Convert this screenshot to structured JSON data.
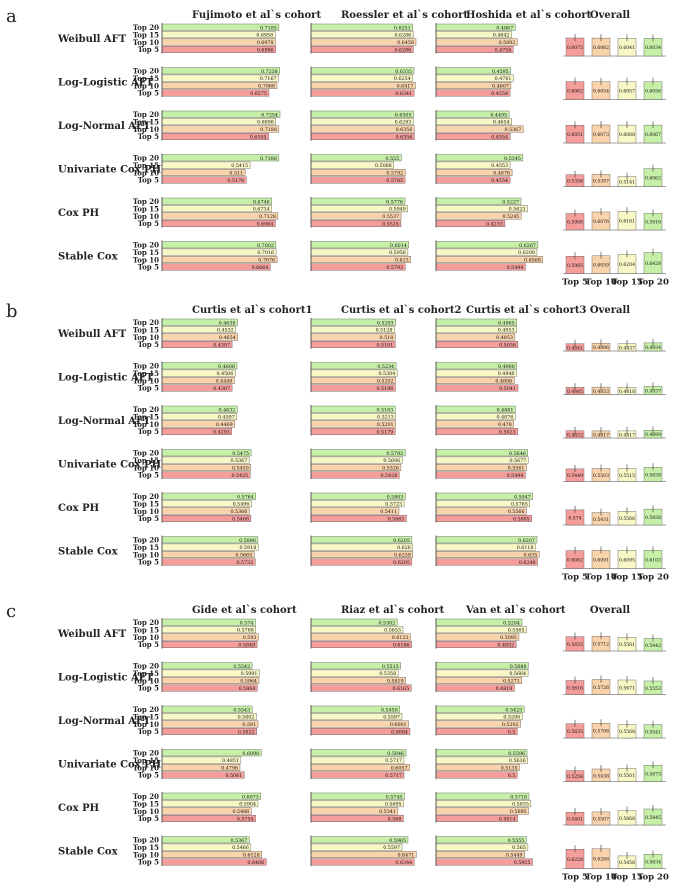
{
  "series_labels": [
    "Top 20",
    "Top 15",
    "Top 10",
    "Top 5"
  ],
  "series_colors": [
    "#c6f0a8",
    "#f8f7c6",
    "#f9d3ab",
    "#f49d9b"
  ],
  "overall_title": "Overall",
  "overall_xlabels": [
    "Top 5",
    "Top 10",
    "Top 15",
    "Top 20"
  ],
  "overall_colors": [
    "#f49d9b",
    "#f9d3ab",
    "#f8f7c6",
    "#c6f0a8"
  ],
  "chart_data": [
    {
      "type": "bar",
      "panel": "a",
      "cohorts": [
        "Fujimoto et al`s cohort",
        "Roessler et al`s cohort",
        "Hoshida et al`s cohort"
      ],
      "methods": [
        {
          "name": "Weibull AFT",
          "values": [
            [
              0.7185,
              0.6958,
              0.6978,
              0.6986
            ],
            [
              0.6251,
              0.6286,
              0.6456,
              0.6286
            ],
            [
              0.4867,
              0.4642,
              0.5002,
              0.4754
            ]
          ],
          "overall": [
            0.6075,
            0.6062,
            0.6041,
            0.6034
          ]
        },
        {
          "name": "Log-Logistic AFT",
          "values": [
            [
              0.7238,
              0.7167,
              0.7068,
              0.6575
            ],
            [
              0.6335,
              0.6254,
              0.6417,
              0.6341
            ],
            [
              0.4595,
              0.4761,
              0.4607,
              0.4554
            ]
          ],
          "overall": [
            0.6062,
            0.6054,
            0.6057,
            0.6056
          ]
        },
        {
          "name": "Log-Normal AFT",
          "values": [
            [
              0.7254,
              0.6998,
              0.7188,
              0.6555
            ],
            [
              0.6305,
              0.6293,
              0.6356,
              0.6356
            ],
            [
              0.4495,
              0.4654,
              0.5367,
              0.4554
            ]
          ],
          "overall": [
            0.6051,
            0.6073,
            0.6068,
            0.6067
          ]
        },
        {
          "name": "Univariate Cox PH",
          "values": [
            [
              0.7188,
              0.5415,
              0.511,
              0.5176
            ],
            [
              0.555,
              0.5088,
              0.5792,
              0.5785
            ],
            [
              0.5345,
              0.4553,
              0.4676,
              0.4554
            ]
          ],
          "overall": [
            0.5358,
            0.5397,
            0.5141,
            0.6062
          ]
        },
        {
          "name": "Cox PH",
          "values": [
            [
              0.6746,
              0.6734,
              0.7128,
              0.6964
            ],
            [
              0.5776,
              0.5949,
              0.5537,
              0.5525
            ],
            [
              0.5227,
              0.5623,
              0.5245,
              0.4233
            ]
          ],
          "overall": [
            0.5908,
            0.6076,
            0.6161,
            0.5916
          ]
        },
        {
          "name": "Stable Cox",
          "values": [
            [
              0.7002,
              0.7016,
              0.7076,
              0.6664
            ],
            [
              0.6014,
              0.5956,
              0.613,
              0.5792
            ],
            [
              0.6267,
              0.6208,
              0.6568,
              0.5494
            ]
          ],
          "overall": [
            0.5985,
            0.6059,
            0.6204,
            0.6428
          ]
        }
      ]
    },
    {
      "type": "bar",
      "panel": "b",
      "cohorts": [
        "Curtis et al`s cohort1",
        "Curtis et al`s cohort2",
        "Curtis et al`s cohort3"
      ],
      "methods": [
        {
          "name": "Weibull AFT",
          "values": [
            [
              0.4639,
              0.4532,
              0.4654,
              0.4307
            ],
            [
              0.5203,
              0.5128,
              0.518,
              0.5181
            ],
            [
              0.4965,
              0.4953,
              0.4853,
              0.5036
            ]
          ],
          "overall": [
            0.4841,
            0.4896,
            0.4837,
            0.4934
          ]
        },
        {
          "name": "Log-Logistic AFT",
          "values": [
            [
              0.4608,
              0.4506,
              0.4449,
              0.4307
            ],
            [
              0.5234,
              0.5304,
              0.5202,
              0.5186
            ],
            [
              0.4968,
              0.4948,
              0.4806,
              0.5041
            ]
          ],
          "overall": [
            0.4845,
            0.4853,
            0.4818,
            0.4937
          ]
        },
        {
          "name": "Log-Normal AFT",
          "values": [
            [
              0.4632,
              0.4597,
              0.4469,
              0.4293
            ],
            [
              0.5183,
              0.5213,
              0.5201,
              0.5179
            ],
            [
              0.4881,
              0.4876,
              0.478,
              0.5023
            ]
          ],
          "overall": [
            0.4832,
            0.4817,
            0.4817,
            0.4899
          ]
        },
        {
          "name": "Univariate Cox PH",
          "values": [
            [
              0.5475,
              0.5367,
              0.5459,
              0.5425
            ],
            [
              0.5792,
              0.5606,
              0.5526,
              0.5428
            ],
            [
              0.5646,
              0.5677,
              0.5561,
              0.5494
            ]
          ],
          "overall": [
            0.5449,
            0.5503,
            0.5515,
            0.5638
          ]
        },
        {
          "name": "Cox PH",
          "values": [
            [
              0.5764,
              0.5496,
              0.5366,
              0.5468
            ],
            [
              0.5803,
              0.5723,
              0.5411,
              0.5863
            ],
            [
              0.5947,
              0.5765,
              0.5566,
              0.5885
            ]
          ],
          "overall": [
            0.574,
            0.5431,
            0.5566,
            0.5838
          ]
        },
        {
          "name": "Stable Cox",
          "values": [
            [
              0.5896,
              0.5918,
              0.5665,
              0.5733
            ],
            [
              0.6205,
              0.626,
              0.6259,
              0.6205
            ],
            [
              0.6207,
              0.6118,
              0.635,
              0.6248
            ]
          ],
          "overall": [
            0.6062,
            0.6091,
            0.6095,
            0.6103
          ]
        }
      ]
    },
    {
      "type": "bar",
      "panel": "c",
      "cohorts": [
        "Gide et al`s cohort",
        "Riaz et al`s cohort",
        "Van et al`s cohort"
      ],
      "methods": [
        {
          "name": "Weibull AFT",
          "values": [
            [
              0.574,
              0.5768,
              0.593,
              0.5849
            ],
            [
              0.5302,
              0.5653,
              0.6123,
              0.6186
            ],
            [
              0.5284,
              0.5565,
              0.5095,
              0.4932
            ]
          ],
          "overall": [
            0.5655,
            0.5712,
            0.5581,
            0.5442
          ]
        },
        {
          "name": "Log-Logistic AFT",
          "values": [
            [
              0.5542,
              0.5991,
              0.5964,
              0.5864
            ],
            [
              0.5515,
              0.5358,
              0.5819,
              0.6165
            ],
            [
              0.5688,
              0.5664,
              0.5271,
              0.4819
            ]
          ],
          "overall": [
            0.5616,
            0.5726,
            0.5671,
            0.5553
          ]
        },
        {
          "name": "Log-Normal AFT",
          "values": [
            [
              0.5543,
              0.5802,
              0.591,
              0.5822
            ],
            [
              0.5458,
              0.5597,
              0.6001,
              0.6084
            ],
            [
              0.5423,
              0.5298,
              0.5202,
              0.5
            ]
          ],
          "overall": [
            0.5635,
            0.5706,
            0.5568,
            0.5541
          ]
        },
        {
          "name": "Univariate Cox PH",
          "values": [
            [
              0.6098,
              0.4851,
              0.4796,
              0.5061
            ],
            [
              0.5846,
              0.5717,
              0.6057,
              0.5717
            ],
            [
              0.5596,
              0.5636,
              0.5135,
              0.5
            ]
          ],
          "overall": [
            0.5258,
            0.5438,
            0.5501,
            0.5873
          ]
        },
        {
          "name": "Cox PH",
          "values": [
            [
              0.6073,
              0.5904,
              0.5486,
              0.5754
            ],
            [
              0.5745,
              0.5695,
              0.5341,
              0.568
            ],
            [
              0.5718,
              0.5835,
              0.5695,
              0.5014
            ]
          ],
          "overall": [
            0.5481,
            0.5507,
            0.5668,
            0.5845
          ]
        },
        {
          "name": "Stable Cox",
          "values": [
            [
              0.5367,
              0.5466,
              0.6128,
              0.6406
            ],
            [
              0.5965,
              0.5597,
              0.6471,
              0.6344
            ],
            [
              0.5555,
              0.565,
              0.5449,
              0.5935
            ]
          ],
          "overall": [
            0.6228,
            0.6268,
            0.5456,
            0.5634
          ]
        }
      ]
    }
  ]
}
